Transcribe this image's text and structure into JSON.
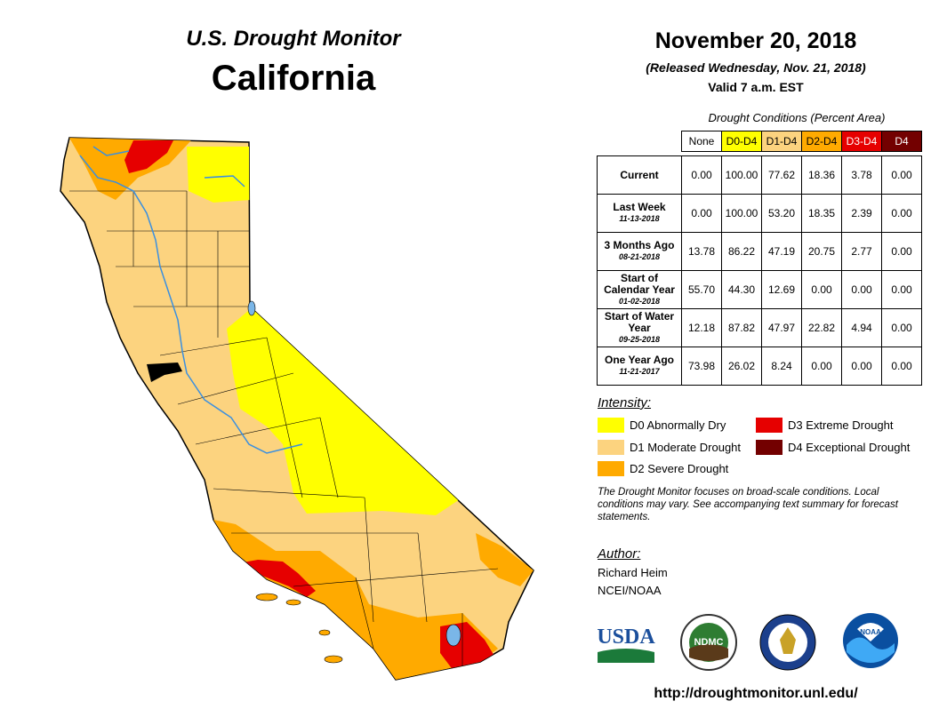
{
  "header": {
    "monitor_title": "U.S. Drought Monitor",
    "state": "California",
    "date": "November 20, 2018",
    "released": "(Released Wednesday, Nov. 21, 2018)",
    "valid": "Valid 7 a.m. EST"
  },
  "table": {
    "caption": "Drought Conditions (Percent Area)",
    "columns": [
      "None",
      "D0-D4",
      "D1-D4",
      "D2-D4",
      "D3-D4",
      "D4"
    ],
    "column_colors": [
      "#ffffff",
      "#ffff00",
      "#fcd37f",
      "#ffaa00",
      "#e60000",
      "#730000"
    ],
    "rows": [
      {
        "label": "Current",
        "date": "",
        "values": [
          "0.00",
          "100.00",
          "77.62",
          "18.36",
          "3.78",
          "0.00"
        ]
      },
      {
        "label": "Last Week",
        "date": "11-13-2018",
        "values": [
          "0.00",
          "100.00",
          "53.20",
          "18.35",
          "2.39",
          "0.00"
        ]
      },
      {
        "label": "3 Months Ago",
        "date": "08-21-2018",
        "values": [
          "13.78",
          "86.22",
          "47.19",
          "20.75",
          "2.77",
          "0.00"
        ]
      },
      {
        "label": "Start of Calendar Year",
        "date": "01-02-2018",
        "values": [
          "55.70",
          "44.30",
          "12.69",
          "0.00",
          "0.00",
          "0.00"
        ]
      },
      {
        "label": "Start of Water Year",
        "date": "09-25-2018",
        "values": [
          "12.18",
          "87.82",
          "47.97",
          "22.82",
          "4.94",
          "0.00"
        ]
      },
      {
        "label": "One Year Ago",
        "date": "11-21-2017",
        "values": [
          "73.98",
          "26.02",
          "8.24",
          "0.00",
          "0.00",
          "0.00"
        ]
      }
    ]
  },
  "legend": {
    "title": "Intensity:",
    "items": [
      {
        "label": "D0 Abnormally Dry",
        "color": "#ffff00"
      },
      {
        "label": "D1 Moderate Drought",
        "color": "#fcd37f"
      },
      {
        "label": "D2 Severe Drought",
        "color": "#ffaa00"
      },
      {
        "label": "D3 Extreme Drought",
        "color": "#e60000"
      },
      {
        "label": "D4 Exceptional Drought",
        "color": "#730000"
      }
    ]
  },
  "note": "The Drought Monitor focuses on broad-scale conditions. Local conditions may vary. See accompanying text summary for forecast statements.",
  "author": {
    "title": "Author:",
    "name": "Richard Heim",
    "org": "NCEI/NOAA"
  },
  "logos": {
    "usda": "USDA",
    "ndmc": "NDMC",
    "noaa": "NOAA"
  },
  "url": "http://droughtmonitor.unl.edu/",
  "colors": {
    "water": "#7ab6e8",
    "river": "#3a8fe0"
  }
}
